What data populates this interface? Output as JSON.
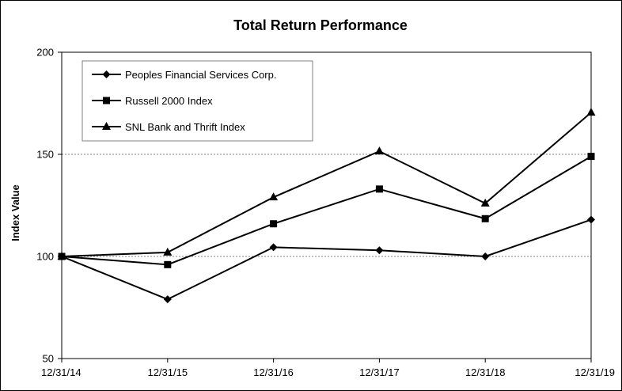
{
  "chart_data": {
    "type": "line",
    "title": "Total Return Performance",
    "xlabel": "",
    "ylabel": "Index Value",
    "categories": [
      "12/31/14",
      "12/31/15",
      "12/31/16",
      "12/31/17",
      "12/31/18",
      "12/31/19"
    ],
    "ylim": [
      50,
      200
    ],
    "yticks": [
      50,
      100,
      150,
      200
    ],
    "grid": "horizontal dashed at 150 and 100",
    "legend_position": "top-left",
    "series": [
      {
        "name": "Peoples Financial Services Corp.",
        "marker": "diamond",
        "values": [
          100,
          79,
          104.5,
          103,
          100,
          118
        ]
      },
      {
        "name": "Russell 2000 Index",
        "marker": "square",
        "values": [
          100,
          96,
          116,
          133,
          118.5,
          149
        ]
      },
      {
        "name": "SNL Bank and Thrift Index",
        "marker": "triangle",
        "values": [
          100,
          102,
          129,
          151.5,
          126,
          170.5
        ]
      }
    ],
    "colors": {
      "line": "#000000",
      "grid": "#808080",
      "border": "#000000",
      "background": "#ffffff"
    }
  }
}
